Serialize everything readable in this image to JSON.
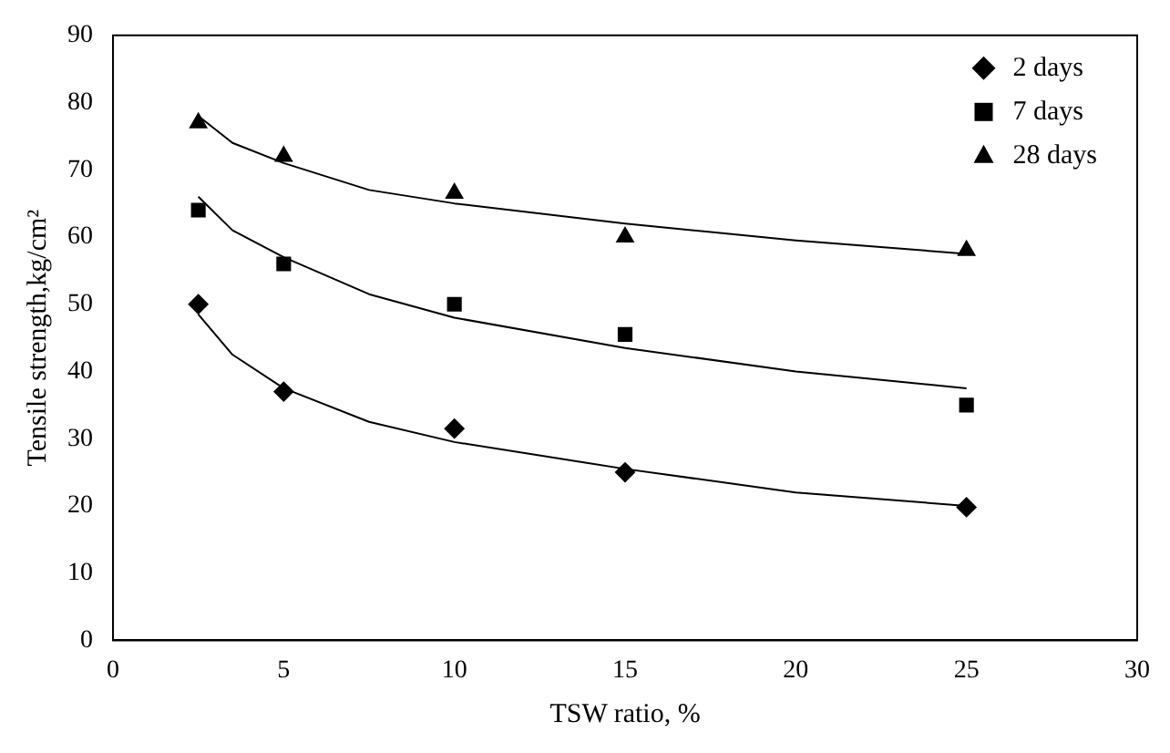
{
  "chart_data": {
    "type": "scatter",
    "xlabel": "TSW ratio, %",
    "ylabel": "Tensile strength,kg/cm²",
    "xlim": [
      0,
      30
    ],
    "xticks": [
      0,
      5,
      10,
      15,
      20,
      25,
      30
    ],
    "ylim": [
      0,
      90
    ],
    "yticks": [
      0,
      10,
      20,
      30,
      40,
      50,
      60,
      70,
      80,
      90
    ],
    "grid": false,
    "legend": "top right",
    "series": [
      {
        "name": "2 days",
        "marker": "diamond",
        "color": "#000000",
        "x": [
          2.5,
          5,
          10,
          15,
          25
        ],
        "values": [
          50,
          37,
          31.5,
          25,
          19.8
        ]
      },
      {
        "name": "7 days",
        "marker": "square",
        "color": "#000000",
        "x": [
          2.5,
          5,
          10,
          15,
          25
        ],
        "values": [
          64,
          56,
          50,
          45.5,
          35
        ]
      },
      {
        "name": "28 days",
        "marker": "triangle",
        "color": "#000000",
        "x": [
          2.5,
          5,
          10,
          15,
          25
        ],
        "values": [
          77,
          72,
          66.5,
          60,
          58
        ]
      },
      {
        "type": "line",
        "marker": "none",
        "color": "#000000",
        "x": [
          2.5,
          3.5,
          5,
          7.5,
          10,
          15,
          20,
          25
        ],
        "values": [
          48.5,
          42.5,
          37.5,
          32.5,
          29.5,
          25.5,
          22,
          20
        ]
      },
      {
        "type": "line",
        "marker": "none",
        "color": "#000000",
        "x": [
          2.5,
          3.5,
          5,
          7.5,
          10,
          15,
          20,
          25
        ],
        "values": [
          66,
          61,
          57,
          51.5,
          48,
          43.5,
          40,
          37.5
        ]
      },
      {
        "type": "line",
        "marker": "none",
        "color": "#000000",
        "x": [
          2.5,
          3.5,
          5,
          7.5,
          10,
          15,
          20,
          25
        ],
        "values": [
          78,
          74,
          71,
          67,
          65,
          62,
          59.5,
          57.5
        ]
      }
    ]
  }
}
